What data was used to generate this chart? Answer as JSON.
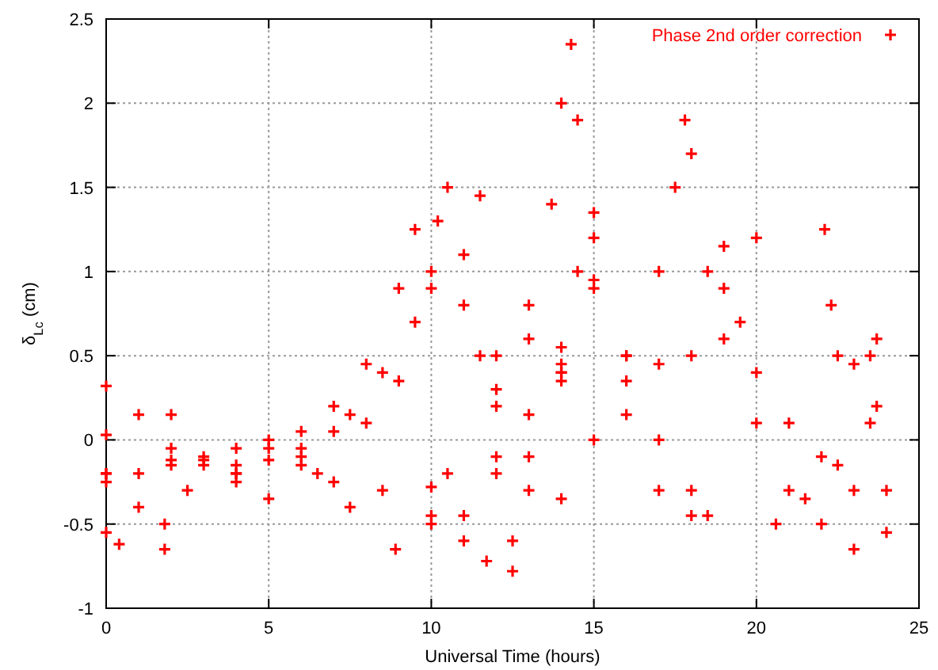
{
  "chart_data": {
    "type": "scatter",
    "xlabel": "Universal Time (hours)",
    "ylabel": "δ$_{Lc}$ (cm)",
    "xlim": [
      0,
      25
    ],
    "ylim": [
      -1,
      2.5
    ],
    "xticks": [
      0,
      5,
      10,
      15,
      20,
      25
    ],
    "yticks": [
      -1,
      -0.5,
      0,
      0.5,
      1,
      1.5,
      2,
      2.5
    ],
    "grid": true,
    "legend": "top right",
    "marker": "cross",
    "series": [
      {
        "name": "Phase 2nd order correction",
        "color": "#ff0000",
        "x": [
          0,
          1,
          2,
          3,
          4,
          5,
          0,
          2,
          4,
          5,
          6,
          7,
          8,
          9,
          9.5,
          0,
          2,
          4,
          6,
          8,
          9,
          10,
          10.5,
          0,
          1,
          3,
          5,
          7,
          8.5,
          10,
          11.5,
          1.8,
          2.5,
          4,
          6,
          7.5,
          9.5,
          11,
          0,
          0.4,
          0,
          1,
          1.8,
          2,
          3,
          4,
          5,
          6.5,
          7.5,
          8.9,
          6,
          7,
          8.5,
          10,
          12,
          14,
          15,
          10,
          11,
          11.7,
          12.5,
          10,
          11,
          12,
          13,
          14,
          15,
          12.5,
          13,
          14,
          14.5,
          15,
          10.5,
          12,
          13,
          13.7,
          14,
          14.3,
          14.5,
          15,
          16,
          17,
          18,
          18.5,
          11.5,
          12,
          14,
          16,
          17,
          18,
          19,
          20,
          10.2,
          11,
          12,
          13,
          14,
          13,
          14,
          16,
          17,
          18,
          15,
          16,
          17,
          17.5,
          17.8,
          18,
          18.5,
          19,
          20,
          21,
          22,
          23,
          19,
          19.5,
          20,
          21,
          22,
          23,
          24,
          22.1,
          22.3,
          22.5,
          23,
          23.5,
          23.7,
          20.6,
          21.5,
          22.5,
          23.5,
          23.7,
          24
        ],
        "values": [
          0.32,
          0.15,
          -0.05,
          -0.15,
          -0.15,
          -0.12,
          -0.2,
          -0.12,
          -0.05,
          0,
          0.05,
          0.2,
          0.45,
          0.9,
          1.25,
          0.03,
          -0.15,
          -0.2,
          -0.15,
          0.1,
          0.35,
          1.0,
          1.5,
          -0.25,
          -0.2,
          -0.12,
          -0.05,
          0.05,
          0.4,
          0.9,
          1.45,
          -0.5,
          -0.3,
          -0.2,
          -0.05,
          0.15,
          0.7,
          1.1,
          -0.55,
          -0.62,
          -0.2,
          -0.4,
          -0.65,
          0.15,
          -0.1,
          -0.25,
          -0.35,
          -0.2,
          -0.4,
          -0.65,
          -0.1,
          -0.25,
          -0.3,
          -0.28,
          -0.1,
          0.35,
          0.95,
          -0.45,
          -0.6,
          -0.72,
          -0.6,
          -0.5,
          -0.45,
          -0.2,
          0.15,
          0.55,
          0.9,
          -0.78,
          -0.3,
          0.4,
          1.0,
          1.35,
          -0.2,
          0.2,
          0.6,
          1.4,
          2.0,
          2.35,
          1.9,
          1.2,
          0.5,
          0,
          -0.3,
          -0.45,
          0.5,
          0.5,
          0.4,
          0.35,
          0.45,
          0.5,
          0.9,
          1.2,
          1.3,
          0.8,
          0.3,
          -0.1,
          -0.35,
          0.8,
          0.45,
          0.15,
          -0.3,
          -0.45,
          0,
          0.5,
          1.0,
          1.5,
          1.9,
          1.7,
          1.0,
          0.6,
          0.1,
          -0.3,
          -0.5,
          -0.65,
          1.15,
          0.7,
          0.4,
          0.1,
          -0.1,
          -0.3,
          -0.55,
          1.25,
          0.8,
          0.5,
          0.45,
          0.5,
          0.6,
          -0.5,
          -0.35,
          -0.15,
          0.1,
          0.2,
          -0.3
        ]
      }
    ]
  }
}
